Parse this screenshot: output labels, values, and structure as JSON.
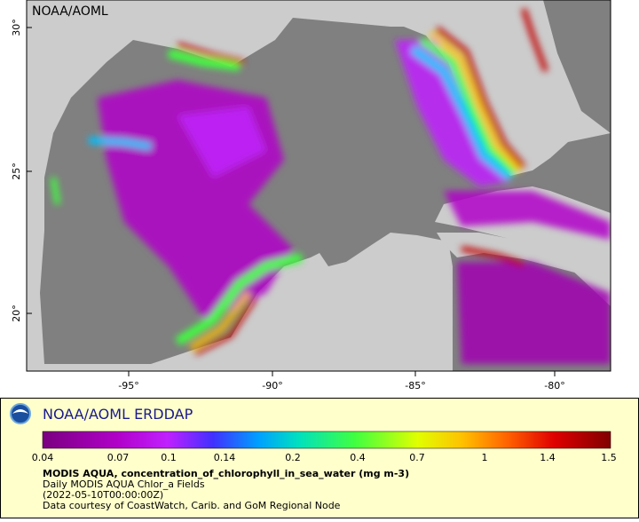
{
  "map": {
    "watermark": "NOAA/AOML",
    "lat_ticks": [
      "30°",
      "25°",
      "20°"
    ],
    "lon_ticks": [
      "-95°",
      "-90°",
      "-85°",
      "-80°"
    ]
  },
  "legend": {
    "title": "NOAA/AOML ERDDAP",
    "colorbar_ticks": [
      "0.04",
      "0.07",
      "0.1",
      "0.14",
      "0.2",
      "0.4",
      "0.7",
      "1",
      "1.4",
      "1.5"
    ],
    "variable": "MODIS AQUA, concentration_of_chlorophyll_in_sea_water (mg m-3)",
    "dataset": "Daily MODIS AQUA Chlor_a Fields",
    "time": "(2022-05-10T00:00:00Z)",
    "credit": "Data courtesy of CoastWatch, Carib. and GoM Regional Node"
  }
}
